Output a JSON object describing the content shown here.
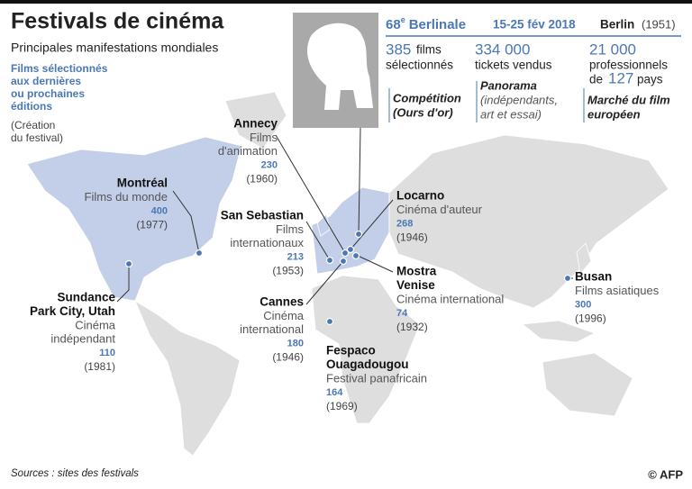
{
  "header": {
    "title": "Festivals de cinéma",
    "subtitle": "Principales manifestations mondiales"
  },
  "legend": {
    "selected": [
      "Films sélectionnés",
      "aux dernières",
      "ou prochaines",
      "éditions"
    ],
    "founded": [
      "(Création",
      "du festival)"
    ]
  },
  "berlinale": {
    "edition": "68",
    "edition_suffix": "e",
    "name": "Berlinale",
    "dates": "15-25 fév 2018",
    "city": "Berlin",
    "founded": "(1951)",
    "stats": [
      {
        "value": "385",
        "label": [
          "films",
          "sélectionnés"
        ]
      },
      {
        "value": "334 000",
        "label": [
          "tickets vendus"
        ]
      },
      {
        "value": "21 000",
        "label": [
          "professionnels",
          "de"
        ],
        "value2": "127",
        "label2": "pays"
      }
    ],
    "sections": [
      {
        "name": "Compétition",
        "detail": "(Ours d'or)"
      },
      {
        "name": "Panorama",
        "detail": [
          "(indépendants,",
          "art et essai)"
        ]
      },
      {
        "name": "Marché du film",
        "detail": "européen"
      }
    ]
  },
  "festivals": [
    {
      "name": [
        "Annecy"
      ],
      "genre": [
        "Films",
        "d'animation"
      ],
      "films": 230,
      "founded": "(1960)"
    },
    {
      "name": [
        "Montréal"
      ],
      "genre": [
        "Films du monde"
      ],
      "films": 400,
      "founded": "(1977)"
    },
    {
      "name": [
        "San Sebastian"
      ],
      "genre": [
        "Films",
        "internationaux"
      ],
      "films": 213,
      "founded": "(1953)"
    },
    {
      "name": [
        "Cannes"
      ],
      "genre": [
        "Cinéma",
        "international"
      ],
      "films": 180,
      "founded": "(1946)"
    },
    {
      "name": [
        "Sundance",
        "Park City, Utah"
      ],
      "genre": [
        "Cinéma",
        "indépendant"
      ],
      "films": 110,
      "founded": "(1981)"
    },
    {
      "name": [
        "Locarno"
      ],
      "genre": [
        "Cinéma d'auteur"
      ],
      "films": 268,
      "founded": "(1946)"
    },
    {
      "name": [
        "Mostra",
        "Venise"
      ],
      "genre": [
        "Cinéma international"
      ],
      "films": 74,
      "founded": "(1932)"
    },
    {
      "name": [
        "Fespaco",
        "Ouagadougou"
      ],
      "genre": [
        "Festival panafricain"
      ],
      "films": 164,
      "founded": "(1969)"
    },
    {
      "name": [
        "Busan"
      ],
      "genre": [
        "Films asiatiques"
      ],
      "films": 300,
      "founded": "(1996)"
    }
  ],
  "footer": {
    "source": "Sources : sites des festivals",
    "credit": "© AFP"
  }
}
